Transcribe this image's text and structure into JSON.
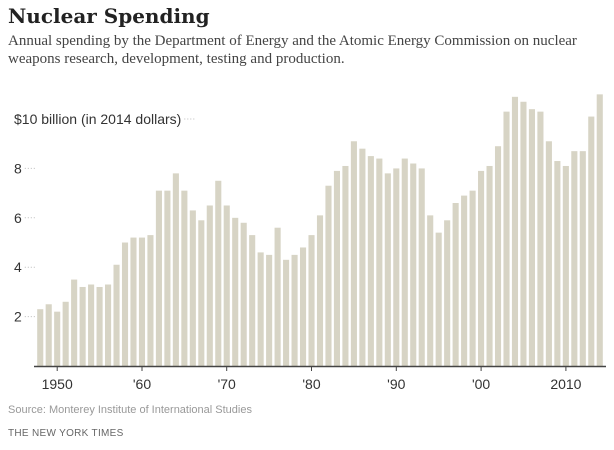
{
  "header": {
    "title": "Nuclear Spending",
    "subtitle": "Annual spending by the Department of Energy and the Atomic Energy Commission on nuclear weapons research, development, testing and production."
  },
  "footer": {
    "source": "Source: Monterey Institute of International Studies",
    "credit": "THE NEW YORK TIMES"
  },
  "colors": {
    "bar": "#d7d4c5",
    "bar_edge": "#c9c6b6",
    "axis": "#444444",
    "gridline": "#bbbbbb",
    "tick_text": "#333333"
  },
  "chart_data": {
    "type": "bar",
    "title": "Nuclear Spending",
    "unit": "$ billion (in 2014 dollars)",
    "x": [
      1948,
      1949,
      1950,
      1951,
      1952,
      1953,
      1954,
      1955,
      1956,
      1957,
      1958,
      1959,
      1960,
      1961,
      1962,
      1963,
      1964,
      1965,
      1966,
      1967,
      1968,
      1969,
      1970,
      1971,
      1972,
      1973,
      1974,
      1975,
      1976,
      1977,
      1978,
      1979,
      1980,
      1981,
      1982,
      1983,
      1984,
      1985,
      1986,
      1987,
      1988,
      1989,
      1990,
      1991,
      1992,
      1993,
      1994,
      1995,
      1996,
      1997,
      1998,
      1999,
      2000,
      2001,
      2002,
      2003,
      2004,
      2005,
      2006,
      2007,
      2008,
      2009,
      2010,
      2011,
      2012,
      2013,
      2014
    ],
    "values": [
      2.3,
      2.5,
      2.2,
      2.6,
      3.5,
      3.2,
      3.3,
      3.2,
      3.3,
      4.1,
      5.0,
      5.2,
      5.2,
      5.3,
      7.1,
      7.1,
      7.8,
      7.1,
      6.3,
      5.9,
      6.5,
      7.5,
      6.5,
      6.0,
      5.8,
      5.3,
      4.6,
      4.5,
      5.6,
      4.3,
      4.5,
      4.8,
      5.3,
      6.1,
      7.3,
      7.9,
      8.1,
      9.1,
      8.8,
      8.5,
      8.4,
      7.8,
      8.0,
      8.4,
      8.2,
      8.0,
      6.1,
      5.4,
      5.9,
      6.6,
      6.9,
      7.1,
      7.9,
      8.1,
      8.9,
      10.3,
      10.9,
      10.7,
      10.4,
      10.3,
      9.1,
      8.3,
      8.1,
      8.7,
      8.7,
      10.1,
      11.0
    ],
    "ylim": [
      0,
      11.5
    ],
    "yticks": [
      {
        "value": 2,
        "label": "2"
      },
      {
        "value": 4,
        "label": "4"
      },
      {
        "value": 6,
        "label": "6"
      },
      {
        "value": 8,
        "label": "8"
      },
      {
        "value": 10,
        "label": "$10 billion (in 2014 dollars)"
      }
    ],
    "xticks": [
      {
        "value": 1950,
        "label": "1950"
      },
      {
        "value": 1960,
        "label": "'60"
      },
      {
        "value": 1970,
        "label": "'70"
      },
      {
        "value": 1980,
        "label": "'80"
      },
      {
        "value": 1990,
        "label": "'90"
      },
      {
        "value": 2000,
        "label": "'00"
      },
      {
        "value": 2010,
        "label": "2010"
      }
    ],
    "grid": "dotted horizontal ticks at y-axis labels",
    "legend": "none"
  }
}
